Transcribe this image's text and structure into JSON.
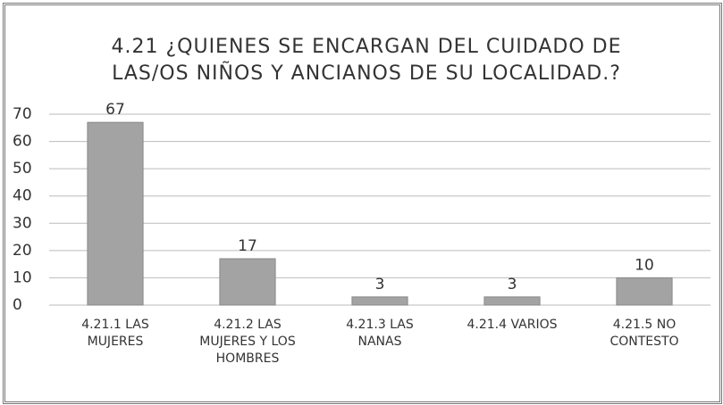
{
  "chart_data": {
    "type": "bar",
    "title": "4.21 ¿QUIENES SE ENCARGAN DEL CUIDADO DE LAS/OS NIÑOS Y ANCIANOS DE SU LOCALIDAD.?",
    "categories": [
      "4.21.1 LAS MUJERES",
      "4.21.2 LAS MUJERES Y LOS HOMBRES",
      "4.21.3 LAS NANAS",
      "4.21.4 VARIOS",
      "4.21.5 NO CONTESTO"
    ],
    "values": [
      67,
      17,
      3,
      3,
      10
    ],
    "color": "#a3a3a3",
    "ylim": [
      0,
      70
    ],
    "yticks": [
      0,
      10,
      20,
      30,
      40,
      50,
      60,
      70
    ],
    "grid": true
  }
}
